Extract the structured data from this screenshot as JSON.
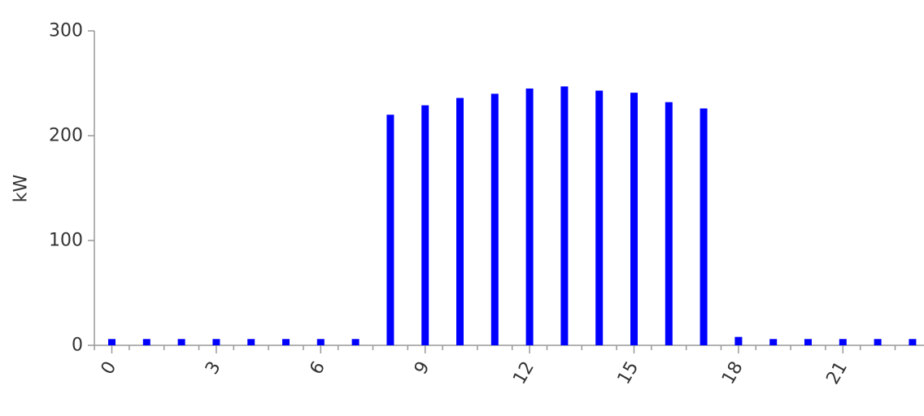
{
  "chart_data": {
    "type": "bar",
    "title": "",
    "xlabel": "",
    "ylabel": "kW",
    "x": [
      0,
      1,
      2,
      3,
      4,
      5,
      6,
      7,
      8,
      9,
      10,
      11,
      12,
      13,
      14,
      15,
      16,
      17,
      18,
      19,
      20,
      21,
      22,
      23
    ],
    "values": [
      6,
      6,
      6,
      6,
      6,
      6,
      6,
      6,
      220,
      229,
      236,
      240,
      245,
      247,
      243,
      241,
      232,
      226,
      8,
      6,
      6,
      6,
      6,
      6
    ],
    "xticks": [
      "0",
      "3",
      "6",
      "9",
      "12",
      "15",
      "18",
      "21"
    ],
    "yticks": [
      "0",
      "100",
      "200",
      "300"
    ],
    "ylim": [
      0,
      300
    ],
    "grid": false,
    "legend": "none",
    "bar_color": "#0000ff",
    "axis_color": "#999999"
  }
}
